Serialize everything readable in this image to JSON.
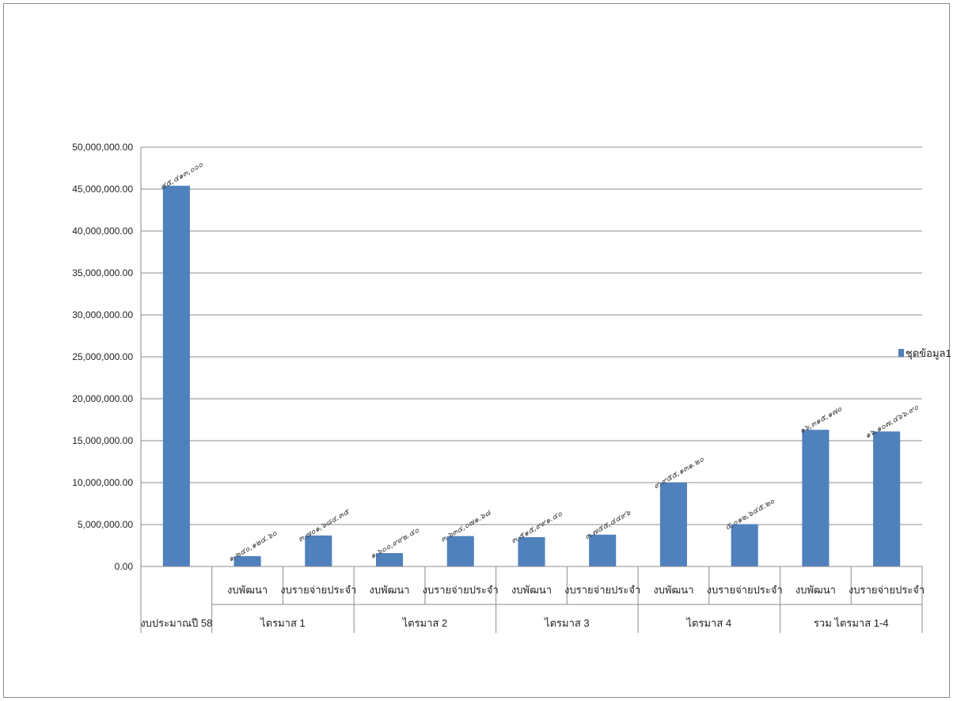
{
  "chart_data": {
    "type": "bar",
    "categories": [
      {
        "label": "งบประมาณปี 58",
        "group": ""
      },
      {
        "label": "งบพัฒนา",
        "group": "ไตรมาส 1"
      },
      {
        "label": "งบรายจ่ายประจำ",
        "group": "ไตรมาส 1"
      },
      {
        "label": "งบพัฒนา",
        "group": "ไตรมาส 2"
      },
      {
        "label": "งบรายจ่ายประจำ",
        "group": "ไตรมาส 2"
      },
      {
        "label": "งบพัฒนา",
        "group": "ไตรมาส 3"
      },
      {
        "label": "งบรายจ่ายประจำ",
        "group": "ไตรมาส 3"
      },
      {
        "label": "งบพัฒนา",
        "group": "ไตรมาส 4"
      },
      {
        "label": "งบรายจ่ายประจำ",
        "group": "ไตรมาส 4"
      },
      {
        "label": "งบพัฒนา",
        "group": "รวม ไตรมาส 1-4"
      },
      {
        "label": "งบรายจ่ายประจำ",
        "group": "รวม ไตรมาส 1-4"
      }
    ],
    "groups": [
      "งบประมาณปี 58",
      "ไตรมาส 1",
      "ไตรมาส 2",
      "ไตรมาส 3",
      "ไตรมาส 4",
      "รวม ไตรมาส 1-4"
    ],
    "series": [
      {
        "name": "ชุดข้อมูล1",
        "color": "#4f81bd",
        "values": [
          45400000,
          1240000,
          3700000,
          1600000,
          3630000,
          3500000,
          3800000,
          10000000,
          5050000,
          16300000,
          16100000
        ],
        "data_labels": [
          "๔๕,๔๑๓,๐๐๐",
          "๑,๒๔๐,๑๒๔.๖๐",
          "๓,๗๐๑,๖๘๔.๓๕",
          "๑,๖๐๐,๙๙๒.๔๐",
          "๓,๖๓๔,๐๗๑.๖๘",
          "๓,๕๑๕,๙๙๑.๔๐",
          "๓,๗๕๕,๔๔๙๖",
          "๙,๙๕๕,๑๓๑.๒๐",
          "๕,๐๑๒,๖๔๕.๒๐",
          "๑๖,๓๑๕,๑๗๐",
          "๑๖,๑๐๗,๔๖๖.๙๐"
        ]
      }
    ],
    "y_ticks": [
      "0.00",
      "5,000,000.00",
      "10,000,000.00",
      "15,000,000.00",
      "20,000,000.00",
      "25,000,000.00",
      "30,000,000.00",
      "35,000,000.00",
      "40,000,000.00",
      "45,000,000.00",
      "50,000,000.00"
    ],
    "ylim": [
      0,
      50000000
    ],
    "grid": true,
    "legend_position": "right",
    "title": "",
    "xlabel": "",
    "ylabel": ""
  }
}
